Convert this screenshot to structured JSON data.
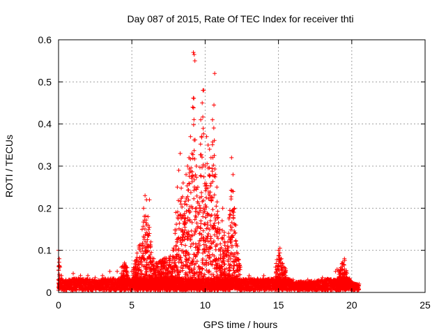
{
  "chart_data": {
    "type": "scatter",
    "title": "Day 087 of 2015, Rate Of TEC Index for receiver thti",
    "xlabel": "GPS time / hours",
    "ylabel": "ROTI / TECUs",
    "xlim": [
      0,
      25
    ],
    "ylim": [
      0,
      0.6
    ],
    "xticks": [
      0,
      5,
      10,
      15,
      20,
      25
    ],
    "yticks": [
      0,
      0.1,
      0.2,
      0.3,
      0.4,
      0.5,
      0.6
    ],
    "xtick_labels": [
      "0",
      "5",
      "10",
      "15",
      "20",
      "25"
    ],
    "ytick_labels": [
      "0",
      "0.1",
      "0.2",
      "0.3",
      "0.4",
      "0.5",
      "0.6"
    ],
    "grid": true,
    "marker": "+",
    "color": "#ff0000",
    "series": [
      {
        "name": "ROTI",
        "points": [
          [
            0.0,
            0.1
          ],
          [
            0.05,
            0.08
          ],
          [
            0.1,
            0.06
          ],
          [
            0.2,
            0.04
          ],
          [
            0.5,
            0.03
          ],
          [
            1.0,
            0.045
          ],
          [
            1.5,
            0.04
          ],
          [
            2.0,
            0.04
          ],
          [
            2.5,
            0.035
          ],
          [
            3.0,
            0.04
          ],
          [
            3.5,
            0.05
          ],
          [
            4.0,
            0.05
          ],
          [
            4.5,
            0.07
          ],
          [
            5.0,
            0.05
          ],
          [
            5.7,
            0.15
          ],
          [
            5.8,
            0.2
          ],
          [
            5.9,
            0.23
          ],
          [
            6.0,
            0.22
          ],
          [
            6.1,
            0.18
          ],
          [
            6.2,
            0.22
          ],
          [
            6.0,
            0.1
          ],
          [
            6.2,
            0.14
          ],
          [
            6.3,
            0.12
          ],
          [
            6.5,
            0.08
          ],
          [
            6.7,
            0.07
          ],
          [
            7.8,
            0.1
          ],
          [
            8.0,
            0.19
          ],
          [
            8.1,
            0.25
          ],
          [
            8.2,
            0.29
          ],
          [
            8.3,
            0.33
          ],
          [
            8.5,
            0.26
          ],
          [
            8.6,
            0.21
          ],
          [
            8.7,
            0.28
          ],
          [
            8.8,
            0.3
          ],
          [
            8.9,
            0.32
          ],
          [
            9.0,
            0.37
          ],
          [
            9.1,
            0.33
          ],
          [
            9.15,
            0.44
          ],
          [
            9.2,
            0.57
          ],
          [
            9.25,
            0.565
          ],
          [
            9.3,
            0.55
          ],
          [
            9.4,
            0.3
          ],
          [
            9.5,
            0.25
          ],
          [
            9.6,
            0.2
          ],
          [
            9.7,
            0.41
          ],
          [
            9.8,
            0.45
          ],
          [
            9.85,
            0.48
          ],
          [
            9.9,
            0.48
          ],
          [
            10.0,
            0.3
          ],
          [
            10.1,
            0.37
          ],
          [
            10.2,
            0.35
          ],
          [
            10.3,
            0.34
          ],
          [
            10.4,
            0.32
          ],
          [
            10.5,
            0.41
          ],
          [
            10.6,
            0.445
          ],
          [
            10.65,
            0.52
          ],
          [
            10.7,
            0.28
          ],
          [
            10.8,
            0.25
          ],
          [
            11.0,
            0.15
          ],
          [
            11.2,
            0.2
          ],
          [
            11.5,
            0.1
          ],
          [
            11.8,
            0.32
          ],
          [
            11.9,
            0.28
          ],
          [
            12.0,
            0.2
          ],
          [
            12.1,
            0.16
          ],
          [
            12.2,
            0.11
          ],
          [
            12.4,
            0.06
          ],
          [
            13.0,
            0.04
          ],
          [
            14.0,
            0.04
          ],
          [
            14.8,
            0.06
          ],
          [
            15.0,
            0.1
          ],
          [
            15.1,
            0.105
          ],
          [
            15.2,
            0.08
          ],
          [
            16.0,
            0.03
          ],
          [
            17.0,
            0.03
          ],
          [
            18.0,
            0.035
          ],
          [
            18.9,
            0.05
          ],
          [
            19.0,
            0.055
          ],
          [
            19.5,
            0.08
          ],
          [
            20.0,
            0.025
          ],
          [
            20.5,
            0.02
          ]
        ]
      }
    ]
  }
}
